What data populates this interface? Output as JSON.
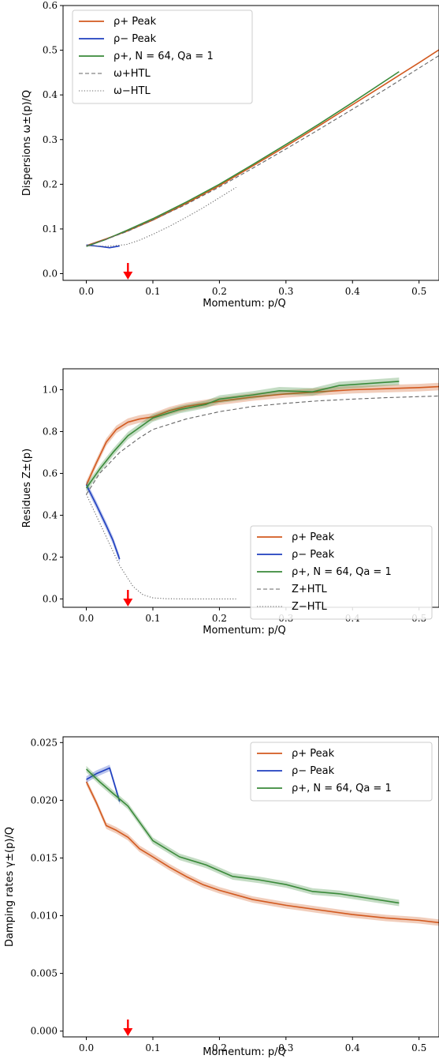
{
  "chart_data": [
    {
      "type": "line",
      "title": "",
      "xlabel": "Momentum: p/Q",
      "ylabel": "Dispersions ω±(p)/Q",
      "xlim": [
        -0.035,
        0.53
      ],
      "ylim": [
        -0.015,
        0.6
      ],
      "xticks": [
        0.0,
        0.1,
        0.2,
        0.3,
        0.4,
        0.5
      ],
      "xtick_labels": [
        "0.0",
        "0.1",
        "0.2",
        "0.3",
        "0.4",
        "0.5"
      ],
      "yticks": [
        0.0,
        0.1,
        0.2,
        0.3,
        0.4,
        0.5,
        0.6
      ],
      "ytick_labels": [
        "0.0",
        "0.1",
        "0.2",
        "0.3",
        "0.4",
        "0.5",
        "0.6"
      ],
      "grid": false,
      "legend": "upper-left",
      "marker": {
        "x": 0.0625,
        "color": "#ff0000"
      },
      "series": [
        {
          "name": "ρ+ Peak",
          "color": "#d2591f",
          "style": "solid",
          "x": [
            0.0,
            0.03,
            0.0625,
            0.1,
            0.15,
            0.2,
            0.25,
            0.3,
            0.35,
            0.4,
            0.45,
            0.5,
            0.53
          ],
          "y": [
            0.0625,
            0.078,
            0.096,
            0.12,
            0.157,
            0.197,
            0.241,
            0.285,
            0.331,
            0.378,
            0.425,
            0.472,
            0.501
          ]
        },
        {
          "name": "ρ− Peak",
          "color": "#1f3fbf",
          "style": "solid",
          "band": true,
          "x": [
            0.0,
            0.02,
            0.035,
            0.05
          ],
          "y": [
            0.064,
            0.061,
            0.058,
            0.062
          ]
        },
        {
          "name": "ρ+, N = 64, Qa = 1",
          "color": "#3a8a3a",
          "style": "solid",
          "x": [
            0.0,
            0.03,
            0.0625,
            0.1,
            0.15,
            0.2,
            0.25,
            0.3,
            0.35,
            0.4,
            0.47
          ],
          "y": [
            0.061,
            0.077,
            0.098,
            0.123,
            0.16,
            0.2,
            0.244,
            0.289,
            0.335,
            0.383,
            0.452
          ]
        },
        {
          "name": "ω+HTL",
          "color": "#666666",
          "style": "dashed",
          "x": [
            0.0,
            0.03,
            0.0625,
            0.1,
            0.15,
            0.2,
            0.25,
            0.3,
            0.35,
            0.4,
            0.45,
            0.5,
            0.53
          ],
          "y": [
            0.0625,
            0.077,
            0.095,
            0.12,
            0.155,
            0.194,
            0.236,
            0.279,
            0.323,
            0.368,
            0.413,
            0.46,
            0.488
          ]
        },
        {
          "name": "ω−HTL",
          "color": "#666666",
          "style": "dotted",
          "x": [
            0.0,
            0.03,
            0.06,
            0.08,
            0.1,
            0.125,
            0.15,
            0.175,
            0.2,
            0.225
          ],
          "y": [
            0.0625,
            0.061,
            0.065,
            0.075,
            0.088,
            0.106,
            0.126,
            0.147,
            0.17,
            0.193
          ]
        }
      ]
    },
    {
      "type": "line",
      "title": "",
      "xlabel": "Momentum: p/Q",
      "ylabel": "Residues Z±(p)",
      "xlim": [
        -0.035,
        0.53
      ],
      "ylim": [
        -0.04,
        1.1
      ],
      "xticks": [
        0.0,
        0.1,
        0.2,
        0.3,
        0.4,
        0.5
      ],
      "xtick_labels": [
        "0.0",
        "0.1",
        "0.2",
        "0.3",
        "0.4",
        "0.5"
      ],
      "yticks": [
        0.0,
        0.2,
        0.4,
        0.6,
        0.8,
        1.0
      ],
      "ytick_labels": [
        "0.0",
        "0.2",
        "0.4",
        "0.6",
        "0.8",
        "1.0"
      ],
      "grid": false,
      "legend": "lower-right",
      "marker": {
        "x": 0.0625,
        "color": "#ff0000"
      },
      "series": [
        {
          "name": "ρ+ Peak",
          "color": "#d2591f",
          "style": "solid",
          "band": true,
          "x": [
            0.0,
            0.015,
            0.03,
            0.045,
            0.0625,
            0.08,
            0.1,
            0.125,
            0.15,
            0.2,
            0.25,
            0.3,
            0.35,
            0.4,
            0.45,
            0.5,
            0.53
          ],
          "y": [
            0.545,
            0.65,
            0.75,
            0.81,
            0.845,
            0.86,
            0.87,
            0.9,
            0.92,
            0.945,
            0.965,
            0.98,
            0.99,
            1.0,
            1.005,
            1.01,
            1.015
          ]
        },
        {
          "name": "ρ− Peak",
          "color": "#1f3fbf",
          "style": "solid",
          "band": true,
          "x": [
            0.0,
            0.015,
            0.03,
            0.04,
            0.05
          ],
          "y": [
            0.545,
            0.45,
            0.35,
            0.28,
            0.19
          ]
        },
        {
          "name": "ρ+, N = 64, Qa = 1",
          "color": "#3a8a3a",
          "style": "solid",
          "band": true,
          "x": [
            0.0,
            0.02,
            0.04,
            0.0625,
            0.1,
            0.14,
            0.18,
            0.2,
            0.25,
            0.29,
            0.34,
            0.38,
            0.47
          ],
          "y": [
            0.53,
            0.62,
            0.7,
            0.78,
            0.865,
            0.905,
            0.93,
            0.955,
            0.975,
            0.995,
            0.99,
            1.02,
            1.04
          ]
        },
        {
          "name": "Z+HTL",
          "color": "#666666",
          "style": "dashed",
          "x": [
            0.0,
            0.02,
            0.05,
            0.08,
            0.1,
            0.15,
            0.2,
            0.25,
            0.3,
            0.35,
            0.4,
            0.45,
            0.5,
            0.53
          ],
          "y": [
            0.5,
            0.6,
            0.7,
            0.77,
            0.81,
            0.86,
            0.895,
            0.92,
            0.935,
            0.947,
            0.955,
            0.962,
            0.967,
            0.97
          ]
        },
        {
          "name": "Z−HTL",
          "color": "#666666",
          "style": "dotted",
          "x": [
            0.0,
            0.025,
            0.05,
            0.07,
            0.085,
            0.1,
            0.12,
            0.15,
            0.2,
            0.225
          ],
          "y": [
            0.5,
            0.33,
            0.16,
            0.06,
            0.02,
            0.005,
            0.001,
            0.0,
            0.0,
            0.0
          ]
        }
      ]
    },
    {
      "type": "line",
      "title": "",
      "xlabel": "Momentum: p/Q",
      "ylabel": "Damping rates γ±(p)/Q",
      "xlim": [
        -0.035,
        0.53
      ],
      "ylim": [
        -0.0005,
        0.0255
      ],
      "xticks": [
        0.0,
        0.1,
        0.2,
        0.3,
        0.4,
        0.5
      ],
      "xtick_labels": [
        "0.0",
        "0.1",
        "0.2",
        "0.3",
        "0.4",
        "0.5"
      ],
      "yticks": [
        0.0,
        0.005,
        0.01,
        0.015,
        0.02,
        0.025
      ],
      "ytick_labels": [
        "0.000",
        "0.005",
        "0.010",
        "0.015",
        "0.020",
        "0.025"
      ],
      "grid": false,
      "legend": "upper-right",
      "marker": {
        "x": 0.0625,
        "color": "#ff0000"
      },
      "series": [
        {
          "name": "ρ+ Peak",
          "color": "#d2591f",
          "style": "solid",
          "band": true,
          "x": [
            0.0,
            0.015,
            0.03,
            0.045,
            0.0625,
            0.08,
            0.1,
            0.125,
            0.15,
            0.175,
            0.2,
            0.25,
            0.3,
            0.35,
            0.4,
            0.45,
            0.5,
            0.53
          ],
          "y": [
            0.0216,
            0.0198,
            0.0178,
            0.0174,
            0.0168,
            0.0158,
            0.0151,
            0.0142,
            0.0134,
            0.0127,
            0.0122,
            0.0114,
            0.0109,
            0.0105,
            0.0101,
            0.0098,
            0.0096,
            0.0094
          ]
        },
        {
          "name": "ρ− Peak",
          "color": "#1f3fbf",
          "style": "solid",
          "band": true,
          "x": [
            0.0,
            0.015,
            0.035,
            0.05
          ],
          "y": [
            0.0218,
            0.0223,
            0.0228,
            0.0199
          ]
        },
        {
          "name": "ρ+, N = 64, Qa = 1",
          "color": "#3a8a3a",
          "style": "solid",
          "band": true,
          "x": [
            0.0,
            0.02,
            0.04,
            0.0625,
            0.1,
            0.14,
            0.18,
            0.22,
            0.26,
            0.3,
            0.34,
            0.38,
            0.47
          ],
          "y": [
            0.0227,
            0.0216,
            0.0206,
            0.0195,
            0.0165,
            0.0151,
            0.0144,
            0.0134,
            0.0131,
            0.0127,
            0.0121,
            0.0119,
            0.0111
          ]
        }
      ]
    }
  ]
}
